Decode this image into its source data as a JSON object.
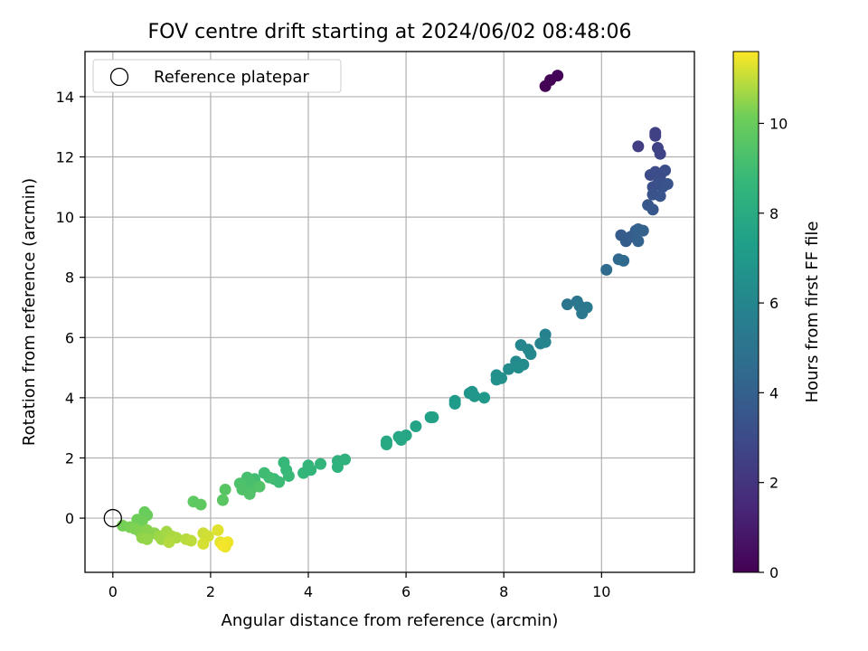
{
  "chart_data": {
    "type": "scatter",
    "title": "FOV centre drift starting at 2024/06/02 08:48:06",
    "xlabel": "Angular distance from reference (arcmin)",
    "ylabel": "Rotation from reference (arcmin)",
    "xlim": [
      -0.57,
      11.9
    ],
    "ylim": [
      -1.8,
      15.5
    ],
    "xticks": [
      0,
      2,
      4,
      6,
      8,
      10
    ],
    "yticks": [
      0,
      2,
      4,
      6,
      8,
      10,
      12,
      14
    ],
    "grid": true,
    "legend": {
      "position": "upper-left",
      "entries": [
        "Reference platepar"
      ]
    },
    "reference_point": {
      "x": 0,
      "y": 0
    },
    "colorbar": {
      "label": "Hours from first FF file",
      "range": [
        0,
        11.6
      ],
      "ticks": [
        0,
        2,
        4,
        6,
        8,
        10
      ],
      "colormap": "viridis"
    },
    "points": [
      {
        "x": 8.85,
        "y": 14.35,
        "c": 0.05
      },
      {
        "x": 8.95,
        "y": 14.55,
        "c": 0.1
      },
      {
        "x": 9.1,
        "y": 14.7,
        "c": 0.15
      },
      {
        "x": 10.75,
        "y": 12.35,
        "c": 2.4
      },
      {
        "x": 11.1,
        "y": 12.8,
        "c": 2.5
      },
      {
        "x": 11.1,
        "y": 12.7,
        "c": 2.55
      },
      {
        "x": 11.15,
        "y": 12.3,
        "c": 2.6
      },
      {
        "x": 11.2,
        "y": 12.1,
        "c": 2.7
      },
      {
        "x": 11.0,
        "y": 11.4,
        "c": 3.0
      },
      {
        "x": 11.1,
        "y": 11.5,
        "c": 3.05
      },
      {
        "x": 11.2,
        "y": 11.35,
        "c": 3.1
      },
      {
        "x": 11.3,
        "y": 11.55,
        "c": 3.15
      },
      {
        "x": 11.05,
        "y": 11.0,
        "c": 3.2
      },
      {
        "x": 11.15,
        "y": 11.1,
        "c": 3.25
      },
      {
        "x": 11.25,
        "y": 11.0,
        "c": 3.3
      },
      {
        "x": 11.35,
        "y": 11.1,
        "c": 3.35
      },
      {
        "x": 11.05,
        "y": 10.75,
        "c": 3.4
      },
      {
        "x": 11.2,
        "y": 10.7,
        "c": 3.45
      },
      {
        "x": 10.95,
        "y": 10.4,
        "c": 3.5
      },
      {
        "x": 11.05,
        "y": 10.25,
        "c": 3.55
      },
      {
        "x": 10.4,
        "y": 9.4,
        "c": 3.8
      },
      {
        "x": 10.5,
        "y": 9.2,
        "c": 3.85
      },
      {
        "x": 10.6,
        "y": 9.35,
        "c": 3.9
      },
      {
        "x": 10.7,
        "y": 9.55,
        "c": 3.95
      },
      {
        "x": 10.75,
        "y": 9.6,
        "c": 4.0
      },
      {
        "x": 10.85,
        "y": 9.55,
        "c": 4.05
      },
      {
        "x": 10.75,
        "y": 9.2,
        "c": 4.1
      },
      {
        "x": 10.35,
        "y": 8.6,
        "c": 4.4
      },
      {
        "x": 10.45,
        "y": 8.55,
        "c": 4.45
      },
      {
        "x": 10.1,
        "y": 8.25,
        "c": 4.6
      },
      {
        "x": 9.3,
        "y": 7.1,
        "c": 5.1
      },
      {
        "x": 9.5,
        "y": 7.2,
        "c": 5.15
      },
      {
        "x": 9.55,
        "y": 7.05,
        "c": 5.2
      },
      {
        "x": 9.7,
        "y": 7.0,
        "c": 5.25
      },
      {
        "x": 9.6,
        "y": 6.8,
        "c": 5.3
      },
      {
        "x": 8.85,
        "y": 6.1,
        "c": 5.8
      },
      {
        "x": 8.75,
        "y": 5.8,
        "c": 5.85
      },
      {
        "x": 8.85,
        "y": 5.85,
        "c": 5.9
      },
      {
        "x": 8.35,
        "y": 5.75,
        "c": 6.0
      },
      {
        "x": 8.5,
        "y": 5.6,
        "c": 6.05
      },
      {
        "x": 8.55,
        "y": 5.45,
        "c": 6.1
      },
      {
        "x": 8.25,
        "y": 5.2,
        "c": 6.2
      },
      {
        "x": 8.4,
        "y": 5.1,
        "c": 6.25
      },
      {
        "x": 8.1,
        "y": 4.95,
        "c": 6.3
      },
      {
        "x": 8.3,
        "y": 5.0,
        "c": 6.35
      },
      {
        "x": 7.85,
        "y": 4.75,
        "c": 6.5
      },
      {
        "x": 7.95,
        "y": 4.65,
        "c": 6.55
      },
      {
        "x": 7.85,
        "y": 4.6,
        "c": 6.6
      },
      {
        "x": 7.3,
        "y": 4.15,
        "c": 6.8
      },
      {
        "x": 7.35,
        "y": 4.2,
        "c": 6.85
      },
      {
        "x": 7.4,
        "y": 4.05,
        "c": 6.9
      },
      {
        "x": 7.6,
        "y": 4.0,
        "c": 6.95
      },
      {
        "x": 7.0,
        "y": 3.9,
        "c": 7.1
      },
      {
        "x": 7.0,
        "y": 3.8,
        "c": 7.15
      },
      {
        "x": 6.5,
        "y": 3.35,
        "c": 7.4
      },
      {
        "x": 6.55,
        "y": 3.35,
        "c": 7.45
      },
      {
        "x": 6.2,
        "y": 3.05,
        "c": 7.55
      },
      {
        "x": 6.0,
        "y": 2.75,
        "c": 7.7
      },
      {
        "x": 5.85,
        "y": 2.7,
        "c": 7.75
      },
      {
        "x": 5.9,
        "y": 2.6,
        "c": 7.8
      },
      {
        "x": 5.6,
        "y": 2.55,
        "c": 7.85
      },
      {
        "x": 5.6,
        "y": 2.45,
        "c": 7.9
      },
      {
        "x": 4.6,
        "y": 1.9,
        "c": 8.3
      },
      {
        "x": 4.75,
        "y": 1.95,
        "c": 8.35
      },
      {
        "x": 4.6,
        "y": 1.7,
        "c": 8.4
      },
      {
        "x": 4.25,
        "y": 1.8,
        "c": 8.5
      },
      {
        "x": 4.0,
        "y": 1.75,
        "c": 8.55
      },
      {
        "x": 4.05,
        "y": 1.6,
        "c": 8.6
      },
      {
        "x": 3.9,
        "y": 1.5,
        "c": 8.65
      },
      {
        "x": 3.5,
        "y": 1.85,
        "c": 8.7
      },
      {
        "x": 3.55,
        "y": 1.6,
        "c": 8.75
      },
      {
        "x": 3.6,
        "y": 1.4,
        "c": 8.8
      },
      {
        "x": 3.3,
        "y": 1.3,
        "c": 8.85
      },
      {
        "x": 3.4,
        "y": 1.2,
        "c": 8.9
      },
      {
        "x": 3.1,
        "y": 1.5,
        "c": 8.95
      },
      {
        "x": 3.2,
        "y": 1.35,
        "c": 9.0
      },
      {
        "x": 2.9,
        "y": 1.3,
        "c": 9.05
      },
      {
        "x": 2.95,
        "y": 1.1,
        "c": 9.1
      },
      {
        "x": 2.75,
        "y": 1.35,
        "c": 9.15
      },
      {
        "x": 2.8,
        "y": 1.2,
        "c": 9.2
      },
      {
        "x": 2.85,
        "y": 1.0,
        "c": 9.25
      },
      {
        "x": 2.6,
        "y": 1.15,
        "c": 9.3
      },
      {
        "x": 2.65,
        "y": 0.95,
        "c": 9.35
      },
      {
        "x": 2.8,
        "y": 0.8,
        "c": 9.4
      },
      {
        "x": 3.0,
        "y": 1.05,
        "c": 9.45
      },
      {
        "x": 2.3,
        "y": 0.95,
        "c": 9.6
      },
      {
        "x": 2.25,
        "y": 0.6,
        "c": 9.65
      },
      {
        "x": 1.65,
        "y": 0.55,
        "c": 9.75
      },
      {
        "x": 1.8,
        "y": 0.45,
        "c": 9.8
      },
      {
        "x": 0.65,
        "y": 0.2,
        "c": 10.0
      },
      {
        "x": 0.7,
        "y": 0.1,
        "c": 10.05
      },
      {
        "x": 0.5,
        "y": -0.05,
        "c": 10.1
      },
      {
        "x": 0.6,
        "y": -0.1,
        "c": 10.15
      },
      {
        "x": 0.2,
        "y": -0.25,
        "c": 10.2
      },
      {
        "x": 0.35,
        "y": -0.3,
        "c": 10.25
      },
      {
        "x": 0.45,
        "y": -0.35,
        "c": 10.3
      },
      {
        "x": 0.55,
        "y": -0.45,
        "c": 10.35
      },
      {
        "x": 0.7,
        "y": -0.4,
        "c": 10.4
      },
      {
        "x": 0.85,
        "y": -0.5,
        "c": 10.45
      },
      {
        "x": 0.6,
        "y": -0.65,
        "c": 10.5
      },
      {
        "x": 0.7,
        "y": -0.7,
        "c": 10.55
      },
      {
        "x": 0.95,
        "y": -0.6,
        "c": 10.6
      },
      {
        "x": 1.0,
        "y": -0.7,
        "c": 10.65
      },
      {
        "x": 1.1,
        "y": -0.45,
        "c": 10.7
      },
      {
        "x": 1.2,
        "y": -0.6,
        "c": 10.75
      },
      {
        "x": 1.3,
        "y": -0.65,
        "c": 10.8
      },
      {
        "x": 1.15,
        "y": -0.8,
        "c": 10.85
      },
      {
        "x": 1.5,
        "y": -0.7,
        "c": 10.9
      },
      {
        "x": 1.6,
        "y": -0.75,
        "c": 10.95
      },
      {
        "x": 1.85,
        "y": -0.5,
        "c": 11.1
      },
      {
        "x": 1.95,
        "y": -0.6,
        "c": 11.15
      },
      {
        "x": 1.85,
        "y": -0.85,
        "c": 11.2
      },
      {
        "x": 2.15,
        "y": -0.4,
        "c": 11.3
      },
      {
        "x": 2.2,
        "y": -0.8,
        "c": 11.35
      },
      {
        "x": 2.3,
        "y": -0.95,
        "c": 11.4
      },
      {
        "x": 2.35,
        "y": -0.8,
        "c": 11.45
      },
      {
        "x": 2.25,
        "y": -0.9,
        "c": 11.5
      }
    ]
  }
}
